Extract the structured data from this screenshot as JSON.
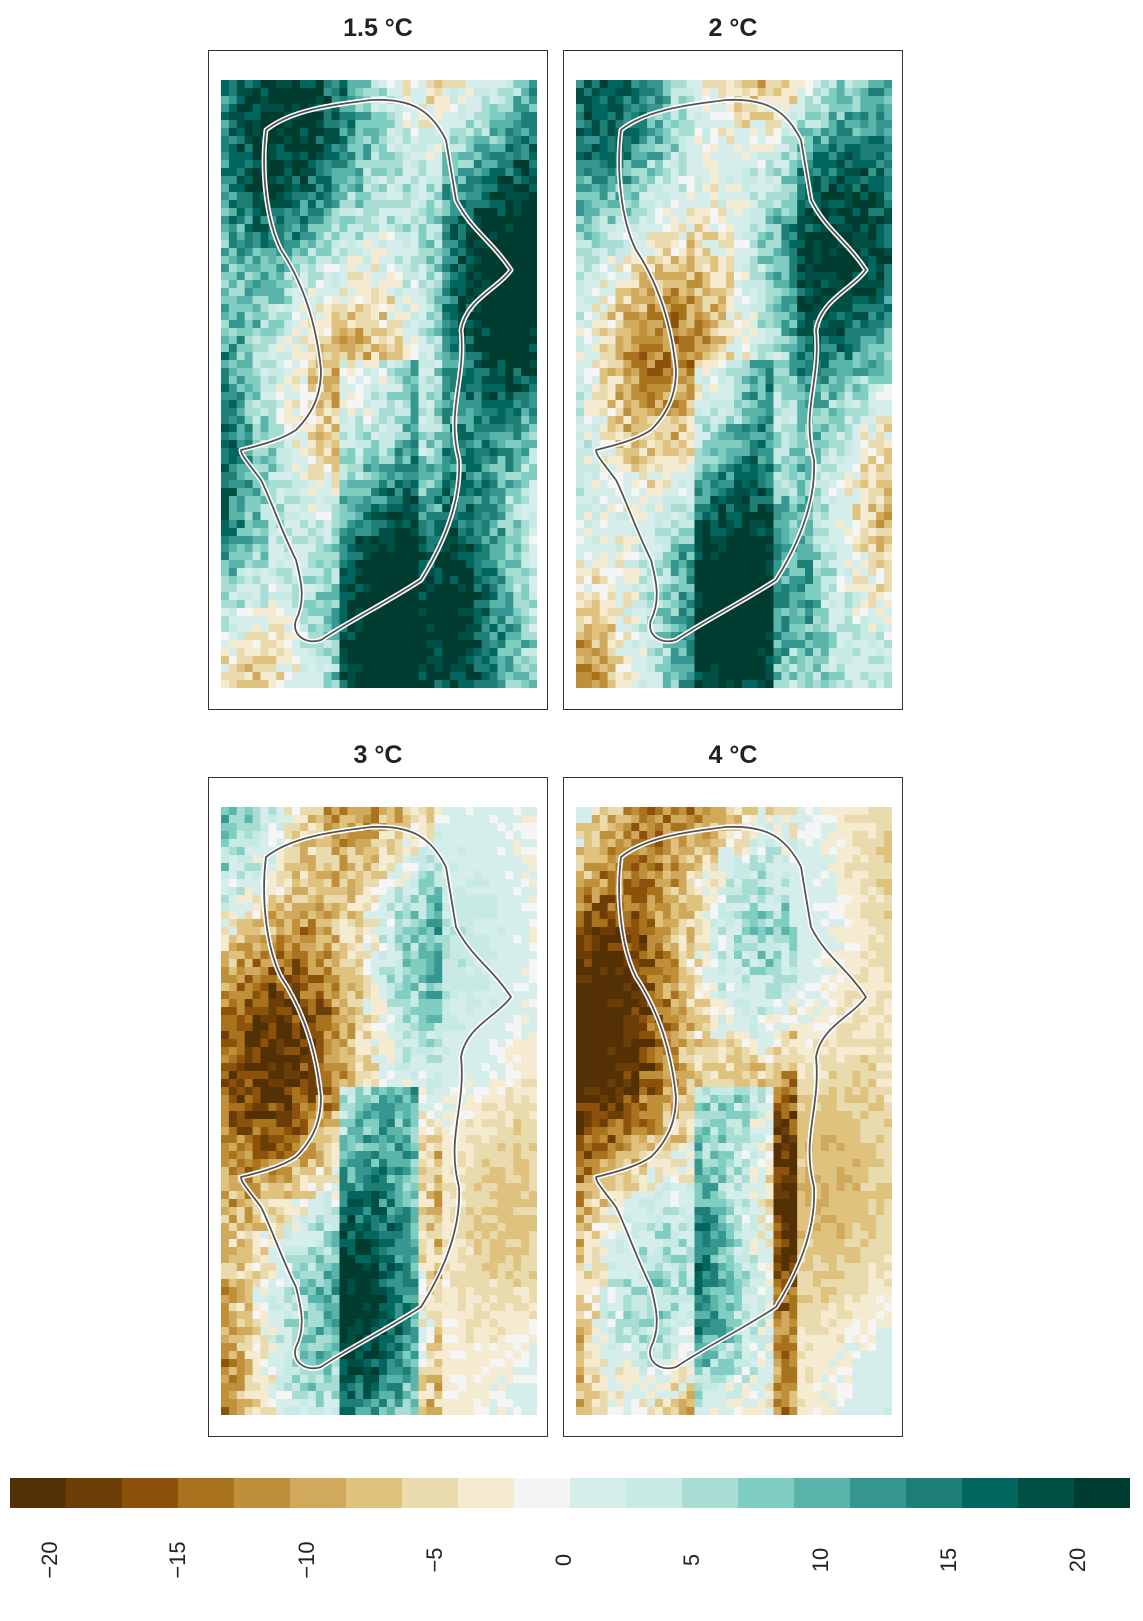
{
  "panels": [
    {
      "title": "1.5 °C",
      "warming_level": 1.5,
      "dominant_change": "mostly positive (wetter)",
      "mean_bias": 6
    },
    {
      "title": "2 °C",
      "warming_level": 2,
      "dominant_change": "mixed, positive in east",
      "mean_bias": 2
    },
    {
      "title": "3 °C",
      "warming_level": 3,
      "dominant_change": "mostly negative (drier), positive band in centre",
      "mean_bias": -5
    },
    {
      "title": "4 °C",
      "warming_level": 4,
      "dominant_change": "predominantly negative (drier)",
      "mean_bias": -9
    }
  ],
  "legend": {
    "min": -20,
    "max": 20,
    "ticks": [
      "−20",
      "−15",
      "−10",
      "−5",
      "0",
      "5",
      "10",
      "15",
      "20"
    ],
    "colors": [
      "#543005",
      "#6b3e08",
      "#8c510a",
      "#a9731e",
      "#bf8f3a",
      "#d0a95c",
      "#dfc27d",
      "#eadbaf",
      "#f5ebd0",
      "#f5f5f5",
      "#d5eeeb",
      "#c7eae5",
      "#a8ddd4",
      "#80cdc1",
      "#5ab4aa",
      "#35978f",
      "#1d7f76",
      "#01665e",
      "#004f45",
      "#003c30"
    ]
  },
  "chart_data": {
    "type": "heatmap",
    "panels": [
      "1.5 °C",
      "2 °C",
      "3 °C",
      "4 °C"
    ],
    "colorbar_range": [
      -20,
      20
    ],
    "colormap": "brown (negative) to teal (positive)"
  }
}
